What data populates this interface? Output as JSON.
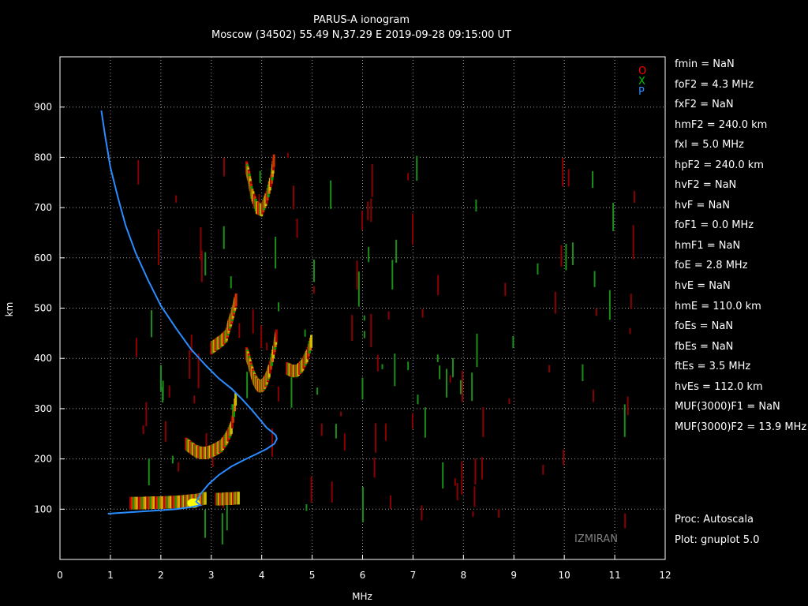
{
  "header": {
    "title": "PARUS-A ionogram",
    "subtitle": "Moscow (34502) 55.49 N,37.29 E   2019-09-28 09:15:00 UT"
  },
  "legend": [
    {
      "symbol": "O",
      "color": "#ff0000"
    },
    {
      "symbol": "X",
      "color": "#00c000"
    },
    {
      "symbol": "P",
      "color": "#2a8cff"
    }
  ],
  "params": [
    "fmin = NaN",
    "foF2 = 4.3 MHz",
    "fxF2 = NaN",
    "hmF2 = 240.0 km",
    "fxI  = 5.0 MHz",
    "hpF2 = 240.0 km",
    "hvF2 = NaN",
    "hvF  = NaN",
    "foF1 = 0.0 MHz",
    "hmF1 = NaN",
    "foE  = 2.8 MHz",
    "hvE  = NaN",
    "hmE  = 110.0 km",
    "foEs = NaN",
    "fbEs = NaN",
    "ftEs = 3.5 MHz",
    "hvEs = 112.0 km",
    "MUF(3000)F1 = NaN",
    "MUF(3000)F2 = 13.9 MHz"
  ],
  "footer": {
    "proc": "Proc: Autoscala",
    "plot": "Plot: gnuplot 5.0",
    "brand": "IZMIRAN"
  },
  "chart_data": {
    "type": "scatter",
    "xlabel": "MHz",
    "ylabel": "km",
    "xlim": [
      0,
      12
    ],
    "ylim": [
      0,
      1000
    ],
    "xticks": [
      0,
      1,
      2,
      3,
      4,
      5,
      6,
      7,
      8,
      9,
      10,
      11,
      12
    ],
    "yticks": [
      100,
      200,
      300,
      400,
      500,
      600,
      700,
      800,
      900
    ],
    "grid": true,
    "profile": {
      "color": "#2a8cff",
      "x": [
        0.82,
        0.9,
        1.0,
        1.15,
        1.3,
        1.5,
        1.75,
        2.0,
        2.3,
        2.6,
        2.9,
        3.15,
        3.4,
        3.6,
        3.8,
        3.95,
        4.1,
        4.2,
        4.28,
        4.3,
        4.25,
        4.1,
        3.9,
        3.65,
        3.4,
        3.15,
        2.95,
        2.8,
        2.7,
        2.78,
        2.6,
        2.3,
        2.0,
        1.7,
        1.4,
        1.1,
        0.95
      ],
      "y": [
        893,
        840,
        780,
        720,
        665,
        610,
        555,
        505,
        460,
        418,
        385,
        360,
        340,
        320,
        298,
        280,
        262,
        254,
        247,
        240,
        230,
        220,
        210,
        198,
        185,
        168,
        150,
        132,
        115,
        108,
        104,
        100,
        98,
        96,
        94,
        92,
        91
      ]
    },
    "traces": [
      {
        "name": "E",
        "x": [
          1.4,
          1.6,
          1.8,
          2.0,
          2.2,
          2.4,
          2.5,
          2.6,
          2.7,
          2.8,
          2.9
        ],
        "y": [
          112,
          112,
          113,
          113,
          114,
          115,
          116,
          117,
          118,
          120,
          122
        ]
      },
      {
        "name": "Es",
        "x": [
          3.1,
          3.2,
          3.3,
          3.4,
          3.5,
          3.55
        ],
        "y": [
          120,
          120,
          121,
          121,
          122,
          122
        ]
      },
      {
        "name": "F-low",
        "x": [
          2.5,
          2.6,
          2.7,
          2.8,
          2.9,
          3.0,
          3.1,
          3.2,
          3.3,
          3.4,
          3.5
        ],
        "y": [
          230,
          222,
          215,
          212,
          212,
          215,
          220,
          226,
          240,
          262,
          330
        ]
      },
      {
        "name": "F-2hop",
        "x": [
          3.7,
          3.75,
          3.8,
          3.85,
          3.9,
          3.95,
          4.0,
          4.05,
          4.1,
          4.15,
          4.25,
          4.3
        ],
        "y": [
          410,
          395,
          375,
          360,
          350,
          345,
          345,
          350,
          360,
          375,
          420,
          450
        ]
      },
      {
        "name": "F-3hop",
        "x": [
          4.5,
          4.6,
          4.7,
          4.8,
          4.9,
          5.0
        ],
        "y": [
          380,
          375,
          375,
          385,
          405,
          440
        ]
      },
      {
        "name": "F-upper",
        "x": [
          3.0,
          3.1,
          3.2,
          3.3,
          3.35,
          3.4,
          3.45,
          3.5
        ],
        "y": [
          420,
          428,
          435,
          445,
          465,
          480,
          500,
          520
        ]
      },
      {
        "name": "F-high",
        "x": [
          3.7,
          3.75,
          3.8,
          3.9,
          4.0,
          4.1,
          4.2,
          4.25
        ],
        "y": [
          780,
          760,
          730,
          700,
          695,
          720,
          760,
          800
        ]
      }
    ]
  }
}
